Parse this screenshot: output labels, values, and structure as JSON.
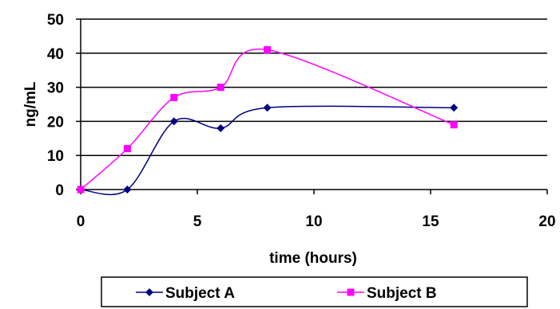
{
  "chart_data": {
    "type": "line",
    "title": "",
    "xlabel": "time (hours)",
    "ylabel": "ng/mL",
    "xlim": [
      0,
      20
    ],
    "ylim": [
      0,
      50
    ],
    "xticks": [
      0,
      5,
      10,
      15,
      20
    ],
    "yticks": [
      0,
      10,
      20,
      30,
      40,
      50
    ],
    "grid": "horizontal",
    "legend_position": "bottom",
    "series": [
      {
        "name": "Subject A",
        "color": "#000080",
        "marker": "diamond",
        "x": [
          0,
          2,
          4,
          6,
          8,
          16
        ],
        "y": [
          0,
          0,
          20,
          18,
          24,
          24
        ]
      },
      {
        "name": "Subject B",
        "color": "#FF00FF",
        "marker": "square",
        "x": [
          0,
          2,
          4,
          6,
          8,
          16
        ],
        "y": [
          0,
          12,
          27,
          30,
          41,
          19
        ]
      }
    ]
  }
}
